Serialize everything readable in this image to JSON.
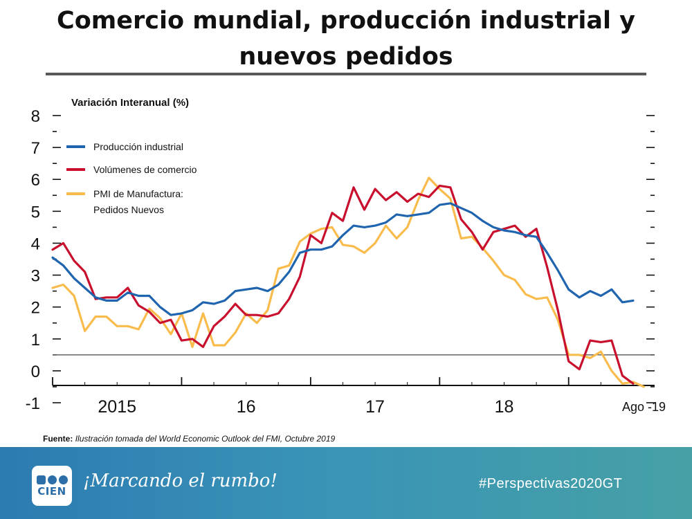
{
  "slide": {
    "title_line1": "Comercio mundial, producción industrial y",
    "title_line2": "nuevos pedidos"
  },
  "source": {
    "label": "Fuente:",
    "text": "Ilustración tomada del World Economic Outlook del FMI, Octubre 2019"
  },
  "footer": {
    "logo_text": "CIEN",
    "slogan": "¡Marcando el rumbo!",
    "hashtag": "#Perspectivas2020GT"
  },
  "colors": {
    "industrial": "#1f64ae",
    "trade": "#c8102e",
    "pmi": "#f9bc4c",
    "accent_footer": "#3993b7"
  },
  "chart_data": {
    "type": "line",
    "title": "Variación Interanual (%)",
    "ylim": [
      -1,
      8
    ],
    "yticks": [
      "-1",
      "0",
      "1",
      "2",
      "3",
      "4",
      "5",
      "6",
      "7",
      "8"
    ],
    "xlabels": [
      "2015",
      "16",
      "17",
      "18",
      "Ago -19"
    ],
    "x_start": "2015-01",
    "x_end_months": 56,
    "reference_line": 0.5,
    "legend": [
      "Producción industrial",
      "Volúmenes de comercio",
      "PMI de Manufactura:",
      "Pedidos Nuevos"
    ],
    "series": [
      {
        "name": "Producción industrial",
        "color": "#1f64ae",
        "values": [
          3.55,
          3.3,
          2.9,
          2.6,
          2.3,
          2.2,
          2.2,
          2.45,
          2.35,
          2.35,
          2.0,
          1.75,
          1.8,
          1.9,
          2.15,
          2.1,
          2.2,
          2.5,
          2.55,
          2.6,
          2.5,
          2.7,
          3.1,
          3.7,
          3.8,
          3.8,
          3.9,
          4.25,
          4.55,
          4.5,
          4.55,
          4.65,
          4.9,
          4.85,
          4.9,
          4.95,
          5.2,
          5.25,
          5.1,
          4.95,
          4.7,
          4.5,
          4.4,
          4.35,
          4.25,
          4.2,
          3.7,
          3.15,
          2.55,
          2.3,
          2.5,
          2.35,
          2.55,
          2.15,
          2.2
        ]
      },
      {
        "name": "Volúmenes de comercio",
        "color": "#c8102e",
        "values": [
          3.8,
          4.0,
          3.45,
          3.1,
          2.25,
          2.3,
          2.3,
          2.6,
          2.05,
          1.85,
          1.5,
          1.6,
          0.95,
          1.0,
          0.75,
          1.4,
          1.7,
          2.1,
          1.75,
          1.75,
          1.7,
          1.8,
          2.25,
          2.95,
          4.25,
          4.0,
          4.95,
          4.7,
          5.75,
          5.05,
          5.7,
          5.35,
          5.6,
          5.3,
          5.55,
          5.45,
          5.8,
          5.75,
          4.75,
          4.35,
          3.8,
          4.35,
          4.45,
          4.55,
          4.2,
          4.45,
          3.25,
          1.9,
          0.3,
          0.05,
          0.95,
          0.9,
          0.95,
          -0.15,
          -0.4
        ]
      },
      {
        "name": "PMI de Manufactura: Pedidos Nuevos",
        "color": "#f9bc4c",
        "values": [
          2.6,
          2.7,
          2.35,
          1.25,
          1.7,
          1.7,
          1.4,
          1.4,
          1.3,
          1.95,
          1.65,
          1.15,
          1.8,
          0.75,
          1.8,
          0.8,
          0.8,
          1.2,
          1.8,
          1.5,
          1.9,
          3.2,
          3.3,
          4.05,
          4.3,
          4.45,
          4.5,
          3.95,
          3.9,
          3.7,
          4.0,
          4.55,
          4.15,
          4.5,
          5.35,
          6.05,
          5.7,
          5.4,
          4.15,
          4.2,
          3.85,
          3.45,
          3.0,
          2.85,
          2.4,
          2.25,
          2.3,
          1.6,
          0.5,
          0.5,
          0.4,
          0.6,
          0.0,
          -0.4,
          -0.35,
          -0.5
        ]
      }
    ]
  }
}
